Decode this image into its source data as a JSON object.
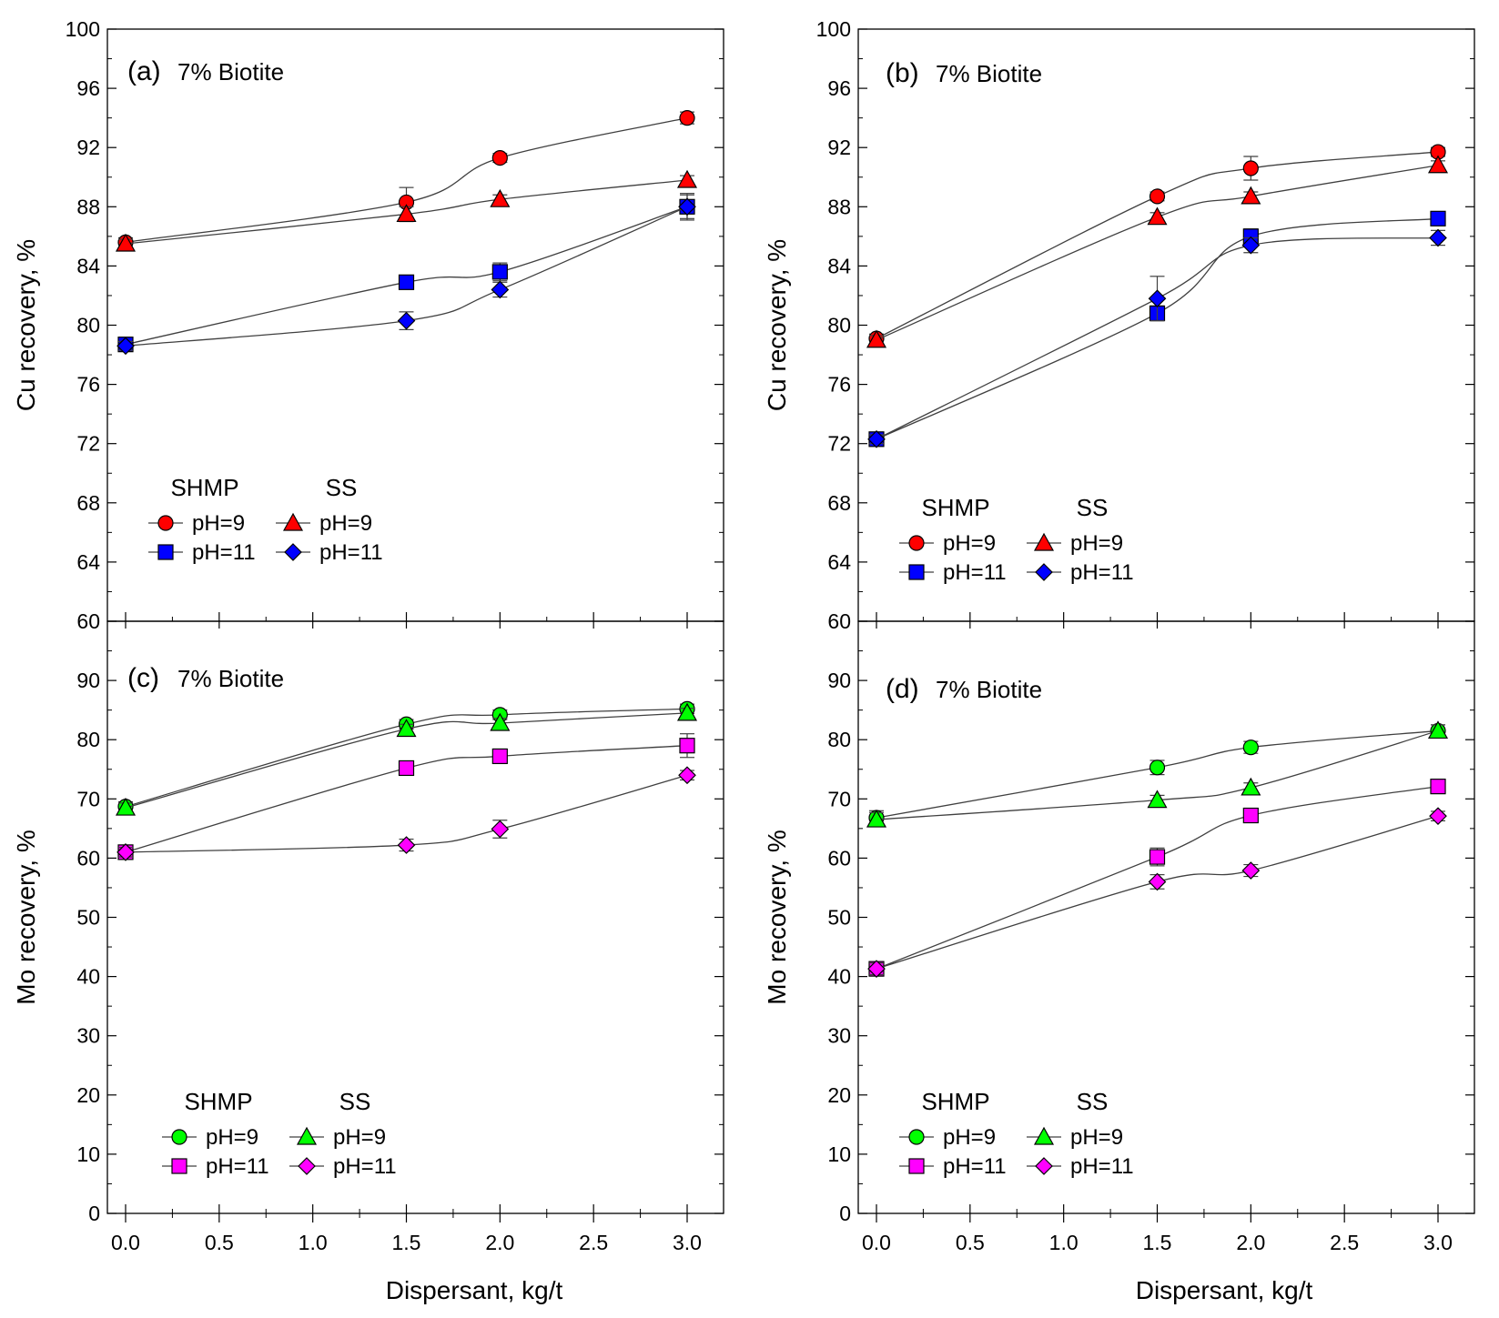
{
  "figure": {
    "xlabel": "Dispersant, kg/t",
    "colors": {
      "pH9_cu": "#ff0000",
      "pH11_cu": "#0000ff",
      "pH9_mo": "#00ff00",
      "pH11_mo": "#ff00ff",
      "line": "#404040",
      "axis": "#000000"
    }
  },
  "chart_data": [
    {
      "type": "line",
      "panel_label": "(a)",
      "title": "7% Biotite",
      "xlabel": "",
      "ylabel": "Cu recovery, %",
      "xlim": [
        0,
        3
      ],
      "ylim": [
        60,
        100
      ],
      "xticks": [
        "",
        "",
        "",
        "",
        "",
        "",
        ""
      ],
      "yticks": [
        "60",
        "64",
        "68",
        "72",
        "76",
        "80",
        "84",
        "88",
        "92",
        "96",
        "100"
      ],
      "legend": {
        "position": "lower-left",
        "group_left": "SHMP",
        "group_right": "SS"
      },
      "series": [
        {
          "name": "pH=9",
          "group": "SHMP",
          "marker": "circle",
          "color": "#ff0000",
          "x": [
            0,
            1.5,
            2.0,
            3.0
          ],
          "y": [
            85.6,
            88.3,
            91.3,
            94.0
          ],
          "err": [
            0.3,
            1.0,
            0.3,
            0.4
          ]
        },
        {
          "name": "pH=11",
          "group": "SHMP",
          "marker": "square",
          "color": "#0000ff",
          "x": [
            0,
            1.5,
            2.0,
            3.0
          ],
          "y": [
            78.7,
            82.9,
            83.6,
            88.0
          ],
          "err": [
            0.3,
            0.3,
            0.6,
            0.8
          ]
        },
        {
          "name": "pH=9",
          "group": "SS",
          "marker": "triangle",
          "color": "#ff0000",
          "x": [
            0,
            1.5,
            2.0,
            3.0
          ],
          "y": [
            85.5,
            87.5,
            88.5,
            89.8
          ],
          "err": [
            0.3,
            0.5,
            0.3,
            0.3
          ]
        },
        {
          "name": "pH=11",
          "group": "SS",
          "marker": "diamond",
          "color": "#0000ff",
          "x": [
            0,
            1.5,
            2.0,
            3.0
          ],
          "y": [
            78.6,
            80.3,
            82.4,
            88.0
          ],
          "err": [
            0.3,
            0.6,
            0.5,
            0.9
          ]
        }
      ]
    },
    {
      "type": "line",
      "panel_label": "(b)",
      "title": "7% Biotite",
      "xlabel": "",
      "ylabel": "Cu recovery, %",
      "xlim": [
        0,
        3
      ],
      "ylim": [
        60,
        100
      ],
      "xticks": [
        "",
        "",
        "",
        "",
        "",
        "",
        ""
      ],
      "yticks": [
        "60",
        "64",
        "68",
        "72",
        "76",
        "80",
        "84",
        "88",
        "92",
        "96",
        "100"
      ],
      "legend": {
        "position": "lower-left",
        "group_left": "SHMP",
        "group_right": "SS"
      },
      "series": [
        {
          "name": "pH=9",
          "group": "SHMP",
          "marker": "circle",
          "color": "#ff0000",
          "x": [
            0,
            1.5,
            2.0,
            3.0
          ],
          "y": [
            79.1,
            88.7,
            90.6,
            91.7
          ],
          "err": [
            0.3,
            0.3,
            0.8,
            0.3
          ]
        },
        {
          "name": "pH=11",
          "group": "SHMP",
          "marker": "square",
          "color": "#0000ff",
          "x": [
            0,
            1.5,
            2.0,
            3.0
          ],
          "y": [
            72.3,
            80.8,
            86.0,
            87.2
          ],
          "err": [
            0.3,
            0.5,
            0.5,
            0.4
          ]
        },
        {
          "name": "pH=9",
          "group": "SS",
          "marker": "triangle",
          "color": "#ff0000",
          "x": [
            0,
            1.5,
            2.0,
            3.0
          ],
          "y": [
            79.0,
            87.3,
            88.7,
            90.8
          ],
          "err": [
            0.3,
            0.3,
            0.3,
            0.3
          ]
        },
        {
          "name": "pH=11",
          "group": "SS",
          "marker": "diamond",
          "color": "#0000ff",
          "x": [
            0,
            1.5,
            2.0,
            3.0
          ],
          "y": [
            72.3,
            81.8,
            85.4,
            85.9
          ],
          "err": [
            0.3,
            1.5,
            0.5,
            0.5
          ]
        }
      ]
    },
    {
      "type": "line",
      "panel_label": "(c)",
      "title": "7% Biotite",
      "xlabel": "Dispersant, kg/t",
      "ylabel": "Mo recovery, %",
      "xlim": [
        0,
        3
      ],
      "ylim": [
        0,
        100
      ],
      "xticks": [
        "0.0",
        "0.5",
        "1.0",
        "1.5",
        "2.0",
        "2.5",
        "3.0"
      ],
      "yticks": [
        "0",
        "10",
        "20",
        "30",
        "40",
        "50",
        "60",
        "70",
        "80",
        "90",
        ""
      ],
      "legend": {
        "position": "lower-left",
        "group_left": "SHMP",
        "group_right": "SS"
      },
      "series": [
        {
          "name": "pH=9",
          "group": "SHMP",
          "marker": "circle",
          "color": "#00ff00",
          "x": [
            0,
            1.5,
            2.0,
            3.0
          ],
          "y": [
            68.7,
            82.6,
            84.2,
            85.2
          ],
          "err": [
            0.8,
            0.8,
            0.8,
            0.8
          ]
        },
        {
          "name": "pH=11",
          "group": "SHMP",
          "marker": "square",
          "color": "#ff00ff",
          "x": [
            0,
            1.5,
            2.0,
            3.0
          ],
          "y": [
            61.0,
            75.2,
            77.2,
            79.0
          ],
          "err": [
            0.8,
            0.8,
            1.0,
            2.0
          ]
        },
        {
          "name": "pH=9",
          "group": "SS",
          "marker": "triangle",
          "color": "#00ff00",
          "x": [
            0,
            1.5,
            2.0,
            3.0
          ],
          "y": [
            68.5,
            81.8,
            82.8,
            84.5
          ],
          "err": [
            0.8,
            0.8,
            0.8,
            0.8
          ]
        },
        {
          "name": "pH=11",
          "group": "SS",
          "marker": "diamond",
          "color": "#ff00ff",
          "x": [
            0,
            1.5,
            2.0,
            3.0
          ],
          "y": [
            61.0,
            62.2,
            64.9,
            74.0
          ],
          "err": [
            0.8,
            1.0,
            1.5,
            0.8
          ]
        }
      ]
    },
    {
      "type": "line",
      "panel_label": "(d)",
      "title": "7% Biotite",
      "xlabel": "Dispersant, kg/t",
      "ylabel": "Mo recovery, %",
      "xlim": [
        0,
        3
      ],
      "ylim": [
        0,
        100
      ],
      "xticks": [
        "0.0",
        "0.5",
        "1.0",
        "1.5",
        "2.0",
        "2.5",
        "3.0"
      ],
      "yticks": [
        "0",
        "10",
        "20",
        "30",
        "40",
        "50",
        "60",
        "70",
        "80",
        "90",
        ""
      ],
      "legend": {
        "position": "lower-left",
        "group_left": "SHMP",
        "group_right": "SS"
      },
      "series": [
        {
          "name": "pH=9",
          "group": "SHMP",
          "marker": "circle",
          "color": "#00ff00",
          "x": [
            0,
            1.5,
            2.0,
            3.0
          ],
          "y": [
            66.8,
            75.3,
            78.7,
            81.5
          ],
          "err": [
            1.2,
            1.2,
            1.0,
            1.0
          ]
        },
        {
          "name": "pH=11",
          "group": "SHMP",
          "marker": "square",
          "color": "#ff00ff",
          "x": [
            0,
            1.5,
            2.0,
            3.0
          ],
          "y": [
            41.3,
            60.2,
            67.2,
            72.1
          ],
          "err": [
            1.0,
            1.5,
            0.8,
            0.8
          ]
        },
        {
          "name": "pH=9",
          "group": "SS",
          "marker": "triangle",
          "color": "#00ff00",
          "x": [
            0,
            1.5,
            2.0,
            3.0
          ],
          "y": [
            66.5,
            69.8,
            71.9,
            81.5
          ],
          "err": [
            1.2,
            0.8,
            0.8,
            1.0
          ]
        },
        {
          "name": "pH=11",
          "group": "SS",
          "marker": "diamond",
          "color": "#ff00ff",
          "x": [
            0,
            1.5,
            2.0,
            3.0
          ],
          "y": [
            41.3,
            56.0,
            57.9,
            67.1
          ],
          "err": [
            1.0,
            1.2,
            1.0,
            0.8
          ]
        }
      ]
    }
  ]
}
